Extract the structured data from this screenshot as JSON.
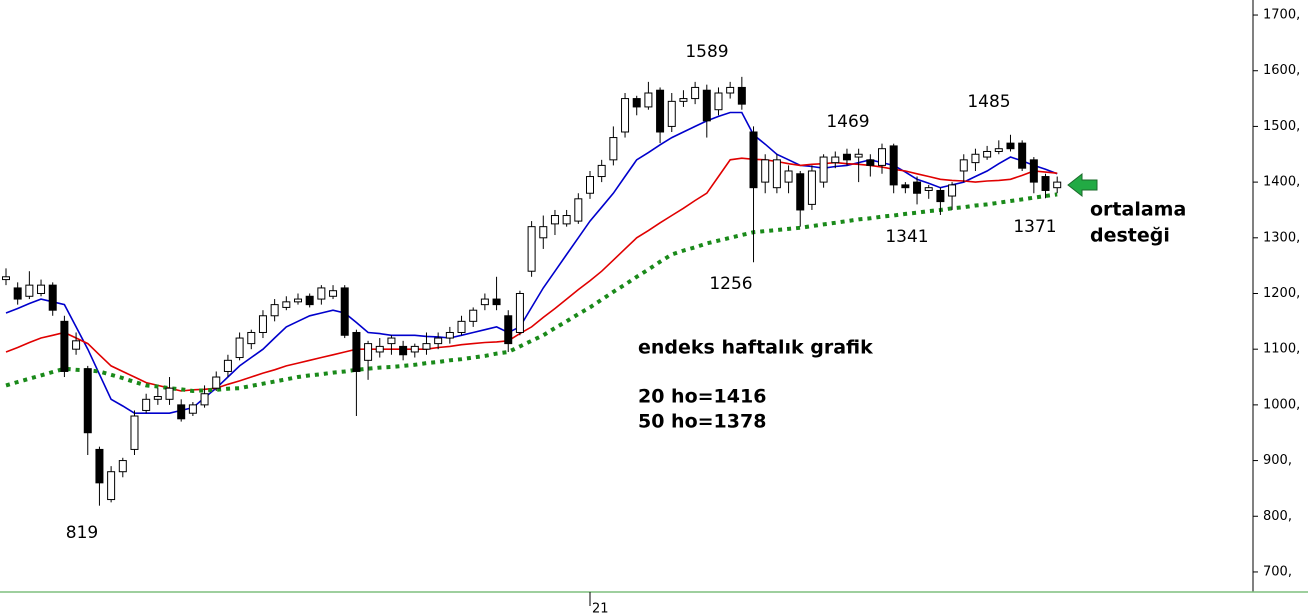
{
  "chart_data": {
    "type": "candlestick",
    "categories": [
      null,
      null,
      null,
      null,
      null,
      null,
      null,
      null,
      null,
      null,
      null,
      null,
      null,
      null,
      null,
      null,
      null,
      null,
      null,
      null,
      null,
      null,
      null,
      null,
      null,
      null,
      null,
      null,
      null,
      null,
      null,
      null,
      null,
      null,
      null,
      null,
      null,
      null,
      null,
      null,
      null,
      null,
      null,
      null,
      null,
      null,
      null,
      null,
      null,
      null,
      "21",
      null,
      null,
      null,
      null,
      null,
      null,
      null,
      null,
      null,
      null,
      null,
      null,
      null,
      null,
      null,
      null,
      null,
      null,
      null,
      null,
      null,
      null,
      null,
      null,
      null,
      null,
      null,
      null,
      null,
      null,
      null,
      null,
      null,
      null,
      null,
      null,
      null,
      null,
      null,
      null
    ],
    "open": [
      1225,
      1210,
      1195,
      1200,
      1215,
      1150,
      1100,
      1065,
      920,
      830,
      880,
      920,
      990,
      1010,
      1010,
      1000,
      985,
      1000,
      1030,
      1060,
      1085,
      1110,
      1130,
      1160,
      1175,
      1185,
      1195,
      1190,
      1195,
      1210,
      1130,
      1080,
      1095,
      1110,
      1105,
      1095,
      1100,
      1110,
      1120,
      1130,
      1150,
      1180,
      1190,
      1160,
      1130,
      1240,
      1300,
      1325,
      1325,
      1330,
      1380,
      1410,
      1440,
      1490,
      1550,
      1535,
      1565,
      1500,
      1545,
      1550,
      1565,
      1530,
      1560,
      1570,
      1490,
      1400,
      1390,
      1400,
      1415,
      1360,
      1400,
      1435,
      1450,
      1445,
      1440,
      1430,
      1465,
      1395,
      1400,
      1385,
      1385,
      1375,
      1420,
      1435,
      1445,
      1455,
      1470,
      1470,
      1440,
      1410,
      1390
    ],
    "high": [
      1245,
      1220,
      1240,
      1225,
      1220,
      1160,
      1130,
      1070,
      925,
      890,
      905,
      990,
      1020,
      1030,
      1050,
      1010,
      1005,
      1035,
      1060,
      1090,
      1130,
      1135,
      1170,
      1190,
      1195,
      1200,
      1200,
      1215,
      1215,
      1215,
      1135,
      1115,
      1120,
      1125,
      1115,
      1110,
      1130,
      1130,
      1140,
      1160,
      1175,
      1200,
      1230,
      1170,
      1205,
      1330,
      1340,
      1350,
      1350,
      1380,
      1420,
      1440,
      1500,
      1560,
      1555,
      1580,
      1570,
      1560,
      1565,
      1580,
      1575,
      1570,
      1580,
      1589,
      1500,
      1450,
      1450,
      1430,
      1420,
      1430,
      1450,
      1455,
      1460,
      1460,
      1450,
      1469,
      1469,
      1400,
      1410,
      1395,
      1390,
      1400,
      1450,
      1460,
      1465,
      1475,
      1485,
      1475,
      1445,
      1415,
      1410
    ],
    "low": [
      1215,
      1180,
      1190,
      1195,
      1160,
      1050,
      1090,
      910,
      819,
      825,
      870,
      910,
      985,
      1000,
      1000,
      970,
      980,
      995,
      1025,
      1050,
      1080,
      1100,
      1120,
      1150,
      1170,
      1180,
      1175,
      1180,
      1190,
      1120,
      980,
      1045,
      1085,
      1090,
      1080,
      1085,
      1090,
      1100,
      1110,
      1125,
      1140,
      1170,
      1170,
      1095,
      1125,
      1230,
      1280,
      1305,
      1320,
      1325,
      1370,
      1400,
      1430,
      1480,
      1520,
      1530,
      1470,
      1490,
      1535,
      1540,
      1480,
      1520,
      1550,
      1530,
      1256,
      1380,
      1380,
      1380,
      1320,
      1350,
      1390,
      1425,
      1430,
      1400,
      1410,
      1415,
      1380,
      1380,
      1360,
      1370,
      1341,
      1350,
      1400,
      1420,
      1440,
      1450,
      1455,
      1420,
      1380,
      1371,
      1380
    ],
    "close": [
      1230,
      1190,
      1215,
      1215,
      1170,
      1060,
      1115,
      950,
      860,
      880,
      900,
      980,
      1010,
      1015,
      1030,
      975,
      1000,
      1020,
      1050,
      1080,
      1120,
      1130,
      1160,
      1180,
      1185,
      1190,
      1180,
      1210,
      1205,
      1125,
      1060,
      1110,
      1105,
      1120,
      1090,
      1105,
      1110,
      1120,
      1130,
      1150,
      1170,
      1190,
      1180,
      1110,
      1200,
      1320,
      1320,
      1340,
      1340,
      1370,
      1410,
      1430,
      1480,
      1550,
      1535,
      1560,
      1490,
      1545,
      1550,
      1570,
      1510,
      1560,
      1570,
      1540,
      1390,
      1440,
      1440,
      1420,
      1350,
      1420,
      1445,
      1445,
      1440,
      1450,
      1430,
      1460,
      1395,
      1390,
      1380,
      1390,
      1365,
      1395,
      1440,
      1450,
      1455,
      1460,
      1460,
      1425,
      1400,
      1385,
      1400
    ],
    "up_color": "#ffffff",
    "down_color": "#000000",
    "series": [
      {
        "color": "#0000cc",
        "style": "solid",
        "values": [
          1165,
          1173,
          1182,
          1190,
          1185,
          1180,
          1140,
          1100,
          1055,
          1010,
          998,
          985,
          985,
          985,
          985,
          990,
          995,
          1013,
          1030,
          1050,
          1070,
          1085,
          1100,
          1120,
          1140,
          1150,
          1160,
          1165,
          1170,
          1165,
          1148,
          1130,
          1128,
          1125,
          1125,
          1125,
          1123,
          1122,
          1120,
          1125,
          1130,
          1135,
          1140,
          1130,
          1140,
          1175,
          1210,
          1240,
          1270,
          1300,
          1330,
          1355,
          1380,
          1410,
          1440,
          1453,
          1467,
          1480,
          1490,
          1500,
          1510,
          1518,
          1525,
          1525,
          1485,
          1468,
          1450,
          1440,
          1430,
          1428,
          1425,
          1428,
          1430,
          1435,
          1440,
          1435,
          1430,
          1418,
          1405,
          1398,
          1390,
          1395,
          1400,
          1410,
          1420,
          1433,
          1445,
          1438,
          1430,
          1423,
          1415
        ]
      },
      {
        "color": "#e00000",
        "style": "solid",
        "values": [
          1095,
          1103,
          1112,
          1120,
          1125,
          1130,
          1120,
          1110,
          1090,
          1070,
          1060,
          1050,
          1040,
          1035,
          1030,
          1025,
          1027,
          1028,
          1030,
          1037,
          1043,
          1050,
          1057,
          1063,
          1070,
          1075,
          1080,
          1085,
          1090,
          1095,
          1100,
          1100,
          1100,
          1100,
          1100,
          1100,
          1100,
          1103,
          1105,
          1108,
          1110,
          1112,
          1113,
          1115,
          1128,
          1140,
          1157,
          1173,
          1190,
          1207,
          1223,
          1240,
          1260,
          1280,
          1300,
          1313,
          1327,
          1340,
          1353,
          1367,
          1380,
          1410,
          1440,
          1443,
          1441,
          1440,
          1437,
          1433,
          1430,
          1432,
          1433,
          1435,
          1433,
          1432,
          1430,
          1427,
          1423,
          1420,
          1415,
          1410,
          1405,
          1403,
          1402,
          1400,
          1402,
          1403,
          1405,
          1412,
          1420,
          1418,
          1416
        ]
      },
      {
        "color": "#1a8a1a",
        "style": "dotted",
        "values": [
          1035,
          1041,
          1047,
          1053,
          1059,
          1065,
          1063,
          1062,
          1060,
          1054,
          1048,
          1041,
          1035,
          1033,
          1030,
          1028,
          1025,
          1026,
          1027,
          1029,
          1030,
          1034,
          1038,
          1042,
          1046,
          1050,
          1053,
          1055,
          1058,
          1060,
          1063,
          1065,
          1067,
          1068,
          1070,
          1072,
          1075,
          1077,
          1080,
          1082,
          1085,
          1088,
          1092,
          1095,
          1105,
          1115,
          1125,
          1138,
          1150,
          1163,
          1175,
          1189,
          1203,
          1216,
          1230,
          1243,
          1257,
          1270,
          1277,
          1283,
          1290,
          1295,
          1300,
          1305,
          1310,
          1312,
          1314,
          1316,
          1318,
          1321,
          1324,
          1327,
          1330,
          1333,
          1335,
          1338,
          1340,
          1343,
          1345,
          1348,
          1350,
          1353,
          1355,
          1358,
          1360,
          1363,
          1366,
          1369,
          1372,
          1375,
          1378
        ]
      }
    ],
    "ylim": [
      664,
      1727
    ],
    "yticks": [
      {
        "value": 700,
        "label": "700,"
      },
      {
        "value": 800,
        "label": "800,"
      },
      {
        "value": 900,
        "label": "900,"
      },
      {
        "value": 1000,
        "label": "1000,"
      },
      {
        "value": 1100,
        "label": "1100,"
      },
      {
        "value": 1200,
        "label": "1200,"
      },
      {
        "value": 1300,
        "label": "1300,"
      },
      {
        "value": 1400,
        "label": "1400,"
      },
      {
        "value": 1500,
        "label": "1500,"
      },
      {
        "value": 1600,
        "label": "1600,"
      },
      {
        "value": 1700,
        "label": "1700,"
      }
    ],
    "annotations": [
      "1589",
      "1256",
      "1469",
      "1341",
      "1485",
      "1371",
      "819"
    ],
    "notes": [
      "endeks haftalık grafik",
      "20 ho=1416",
      "50 ho=1378"
    ],
    "support_label": [
      "ortalama",
      "desteği"
    ],
    "arrow_color": "#22aa44"
  }
}
